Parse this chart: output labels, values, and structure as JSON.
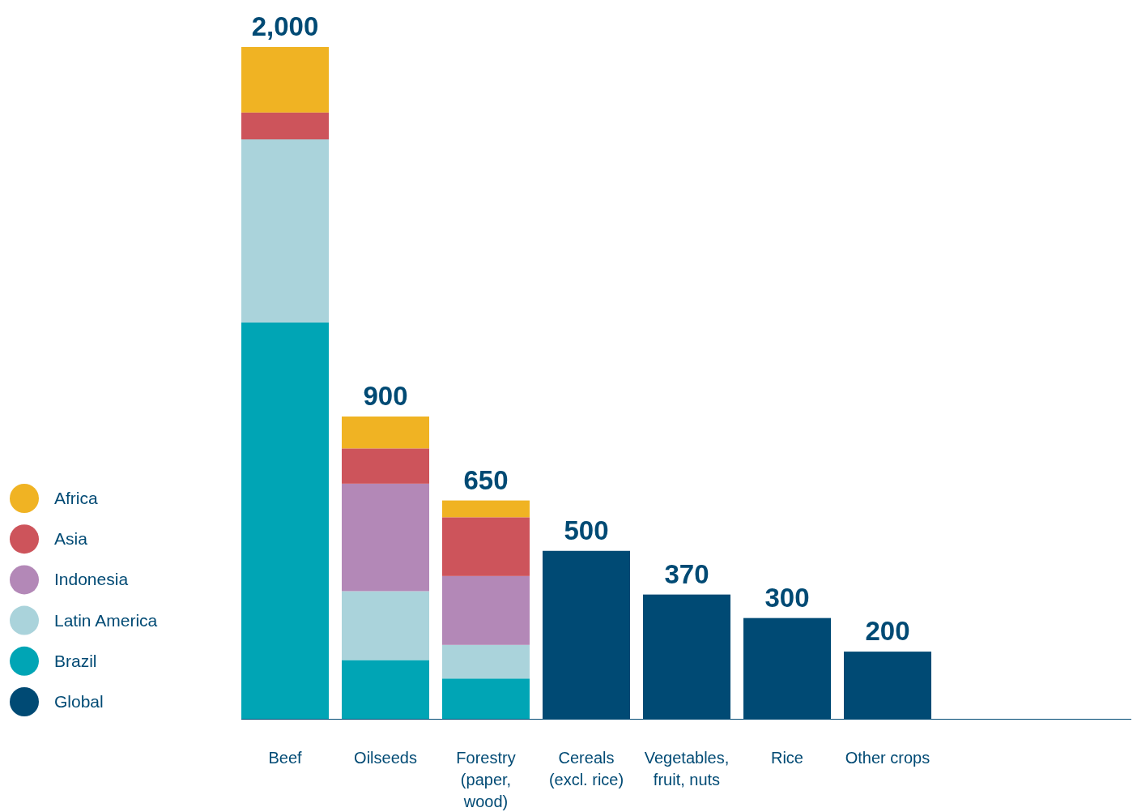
{
  "chart_data": {
    "type": "bar",
    "stacked": true,
    "legend": "left",
    "categories": [
      "Beef",
      "Oilseeds",
      "Forestry (paper, wood)",
      "Cereals (excl. rice)",
      "Vegetables, fruit, nuts",
      "Rice",
      "Other crops"
    ],
    "series": [
      {
        "name": "Global",
        "color": "#004a74",
        "values": [
          null,
          null,
          null,
          500,
          370,
          300,
          200
        ],
        "value_labels": [
          null,
          null,
          null,
          "500",
          "370",
          "300",
          "200"
        ]
      },
      {
        "name": "Brazil",
        "color": "#00a5b5",
        "values": [
          1180,
          175,
          120,
          null,
          null,
          null,
          null
        ]
      },
      {
        "name": "Latin America",
        "color": "#aad3db",
        "values": [
          545,
          205,
          100,
          null,
          null,
          null,
          null
        ]
      },
      {
        "name": "Indonesia",
        "color": "#b388b7",
        "values": [
          null,
          320,
          205,
          null,
          null,
          null,
          null
        ]
      },
      {
        "name": "Asia",
        "color": "#cd545b",
        "values": [
          80,
          105,
          175,
          null,
          null,
          null,
          null
        ]
      },
      {
        "name": "Africa",
        "color": "#f0b323",
        "values": [
          195,
          95,
          50,
          null,
          null,
          null,
          null
        ]
      }
    ],
    "totals": [
      "2,000",
      "900",
      "650",
      null,
      null,
      null,
      null
    ]
  }
}
